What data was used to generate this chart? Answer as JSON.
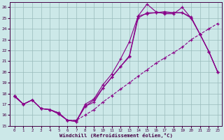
{
  "title": "",
  "xlabel": "Windchill (Refroidissement éolien,°C)",
  "ylabel": "",
  "xlim": [
    -0.5,
    23.5
  ],
  "ylim": [
    15,
    26.5
  ],
  "xticks": [
    0,
    1,
    2,
    3,
    4,
    5,
    6,
    7,
    8,
    9,
    10,
    11,
    12,
    13,
    14,
    15,
    16,
    17,
    18,
    19,
    20,
    21,
    22,
    23
  ],
  "yticks": [
    15,
    16,
    17,
    18,
    19,
    20,
    21,
    22,
    23,
    24,
    25,
    26
  ],
  "bg_color": "#cce8e8",
  "line_color": "#880088",
  "grid_color": "#99bbbb",
  "series": [
    {
      "x": [
        0,
        1,
        2,
        3,
        4,
        5,
        6,
        7,
        8,
        9,
        10,
        11,
        12,
        13,
        14,
        15,
        16,
        17,
        18,
        19,
        20,
        21,
        22,
        23
      ],
      "y": [
        17.8,
        17.0,
        17.4,
        16.6,
        16.5,
        16.1,
        15.5,
        15.4,
        17.0,
        17.5,
        18.8,
        19.8,
        21.2,
        22.8,
        25.2,
        26.3,
        25.6,
        25.4,
        25.4,
        26.0,
        25.0,
        23.5,
        21.9,
        20.0
      ],
      "linestyle": "-"
    },
    {
      "x": [
        0,
        1,
        2,
        3,
        4,
        5,
        6,
        7,
        8,
        9,
        10,
        11,
        12,
        13,
        14,
        15,
        16,
        17,
        18,
        19,
        20,
        21,
        22,
        23
      ],
      "y": [
        17.8,
        17.0,
        17.4,
        16.6,
        16.5,
        16.1,
        15.5,
        15.4,
        16.8,
        17.2,
        18.5,
        19.5,
        20.5,
        21.5,
        25.2,
        25.4,
        25.5,
        25.5,
        25.5,
        25.5,
        25.1,
        23.5,
        21.9,
        20.0
      ],
      "linestyle": "-"
    },
    {
      "x": [
        0,
        1,
        2,
        3,
        4,
        5,
        6,
        7,
        8,
        9,
        10,
        11,
        12,
        13,
        14,
        15,
        16,
        17,
        18,
        19,
        20,
        21,
        22,
        23
      ],
      "y": [
        17.7,
        17.0,
        17.4,
        16.6,
        16.5,
        16.2,
        15.5,
        15.5,
        16.8,
        17.4,
        18.5,
        19.5,
        20.5,
        21.4,
        25.0,
        25.5,
        25.5,
        25.6,
        25.5,
        25.5,
        25.0,
        23.5,
        21.9,
        20.0
      ],
      "linestyle": "-"
    },
    {
      "x": [
        0,
        1,
        2,
        3,
        4,
        5,
        6,
        7,
        8,
        9,
        10,
        11,
        12,
        13,
        14,
        15,
        16,
        17,
        18,
        19,
        20,
        21,
        22,
        23
      ],
      "y": [
        17.8,
        17.0,
        17.4,
        16.6,
        16.5,
        16.2,
        15.5,
        15.5,
        16.0,
        16.5,
        17.2,
        17.8,
        18.4,
        19.0,
        19.6,
        20.2,
        20.8,
        21.3,
        21.8,
        22.3,
        23.0,
        23.5,
        24.0,
        24.5
      ],
      "linestyle": "--"
    }
  ]
}
